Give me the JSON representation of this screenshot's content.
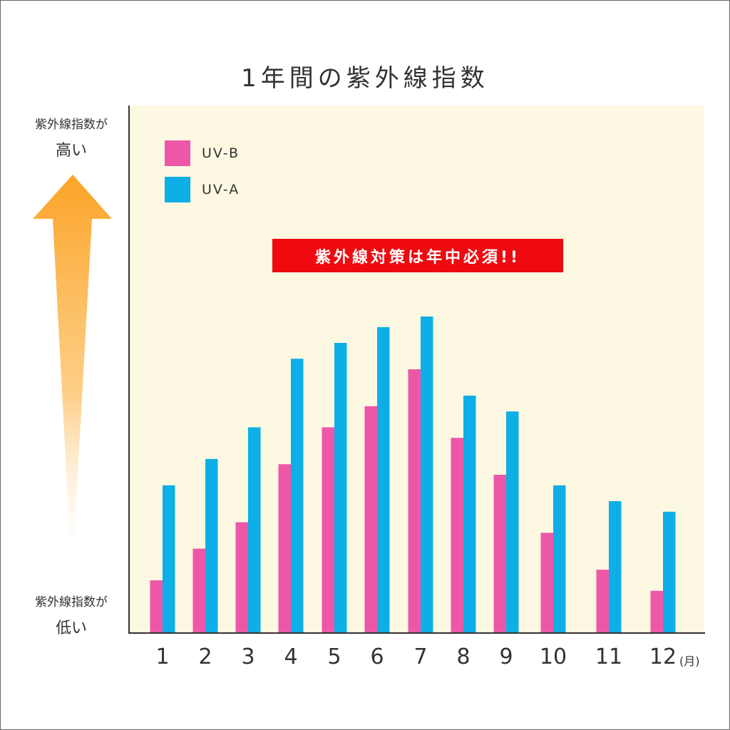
{
  "chart_data": {
    "type": "bar",
    "title": "1年間の紫外線指数",
    "categories": [
      "1",
      "2",
      "3",
      "4",
      "5",
      "6",
      "7",
      "8",
      "9",
      "10",
      "11",
      "12"
    ],
    "x_unit": "(月)",
    "series": [
      {
        "name": "UV-B",
        "color": "#ee57a8",
        "values": [
          10,
          16,
          21,
          32,
          39,
          43,
          50,
          37,
          30,
          19,
          12,
          8
        ]
      },
      {
        "name": "UV-A",
        "color": "#0eaee6",
        "values": [
          28,
          33,
          39,
          52,
          55,
          58,
          60,
          45,
          42,
          28,
          25,
          23
        ]
      }
    ],
    "ylim": [
      0,
      100
    ],
    "y_axis_top_label": {
      "line1": "紫外線指数が",
      "line2": "高い"
    },
    "y_axis_bottom_label": {
      "line1": "紫外線指数が",
      "line2": "低い"
    },
    "annotation": "紫外線対策は年中必須!!",
    "legend": "top-left",
    "grid": false,
    "plot_background": "#fdf8e1",
    "arrow_color": "#fba428"
  }
}
